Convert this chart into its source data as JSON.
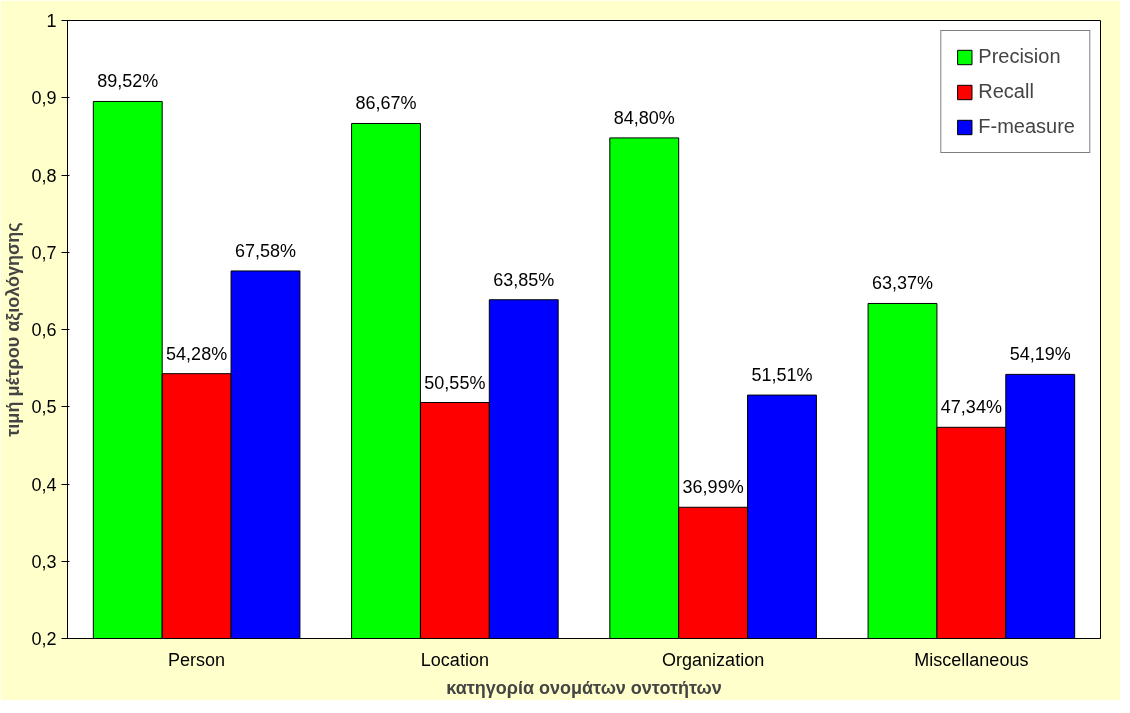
{
  "chart_data": {
    "type": "bar",
    "xlabel": "κατηγορία ονομάτων οντοτήτων",
    "ylabel": "τιμή μέτρου αξιολόγησης",
    "categories": [
      "Person",
      "Location",
      "Organization",
      "Miscellaneous"
    ],
    "series": [
      {
        "name": "Precision",
        "color": "#00ff00",
        "values": [
          0.8952,
          0.8667,
          0.848,
          0.6337
        ],
        "value_labels": [
          "89,52%",
          "86,67%",
          "84,80%",
          "63,37%"
        ]
      },
      {
        "name": "Recall",
        "color": "#ff0000",
        "values": [
          0.5428,
          0.5055,
          0.3699,
          0.4734
        ],
        "value_labels": [
          "54,28%",
          "50,55%",
          "36,99%",
          "47,34%"
        ]
      },
      {
        "name": "F-measure",
        "color": "#0000ff",
        "values": [
          0.6758,
          0.6385,
          0.5151,
          0.5419
        ],
        "value_labels": [
          "67,58%",
          "63,85%",
          "51,51%",
          "54,19%"
        ]
      }
    ],
    "ylim": [
      0.2,
      1
    ],
    "yticks": [
      {
        "value": 0.2,
        "label": "0,2"
      },
      {
        "value": 0.3,
        "label": "0,3"
      },
      {
        "value": 0.4,
        "label": "0,4"
      },
      {
        "value": 0.5,
        "label": "0,5"
      },
      {
        "value": 0.6,
        "label": "0,6"
      },
      {
        "value": 0.7,
        "label": "0,7"
      },
      {
        "value": 0.8,
        "label": "0,8"
      },
      {
        "value": 0.9,
        "label": "0,9"
      },
      {
        "value": 1,
        "label": "1"
      }
    ],
    "grid": false,
    "legend": "top right"
  }
}
